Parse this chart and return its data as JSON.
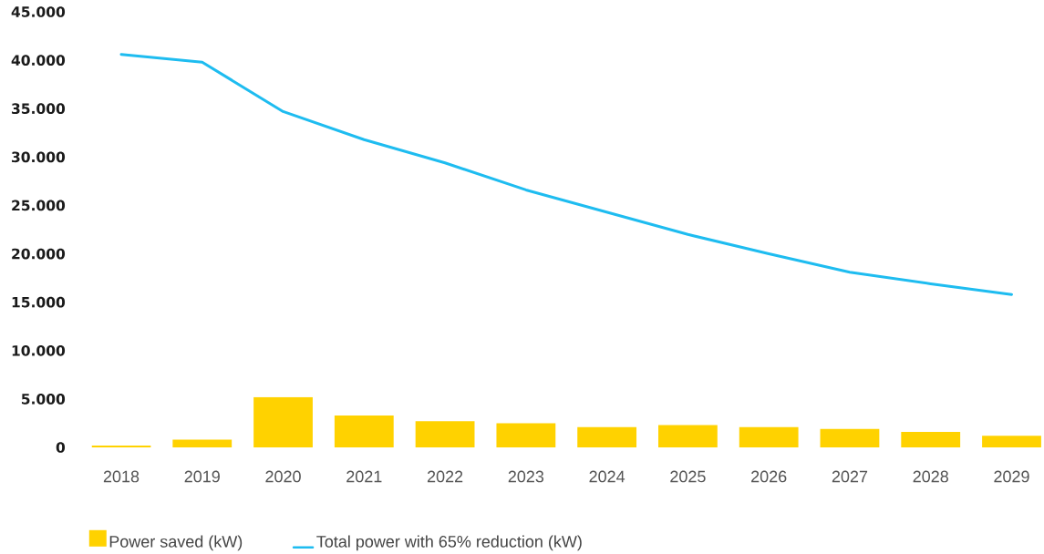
{
  "chart_data": {
    "type": "bar",
    "categories": [
      "2018",
      "2019",
      "2020",
      "2021",
      "2022",
      "2023",
      "2024",
      "2025",
      "2026",
      "2027",
      "2028",
      "2029"
    ],
    "series": [
      {
        "name": "Power saved (kW)",
        "color": "#ffd200",
        "values": [
          200,
          800,
          5200,
          3300,
          2700,
          2500,
          2100,
          2300,
          2100,
          1900,
          1600,
          1200
        ]
      },
      {
        "name": "Total power with 65% reduction (kW)",
        "type": "line",
        "color": "#1ebcf0",
        "values": [
          40600,
          39800,
          34700,
          31800,
          29400,
          26600,
          24300,
          22000,
          20000,
          18100,
          16900,
          15800
        ]
      }
    ],
    "ylim": [
      0,
      45000
    ],
    "yticks": [
      0,
      {
        "value": 5000,
        "label": "5.000"
      },
      {
        "value": 10000,
        "label": "10.000"
      },
      {
        "value": 15000,
        "label": "15.000"
      },
      {
        "value": 20000,
        "label": "20.000"
      },
      {
        "value": 25000,
        "label": "25.000"
      },
      {
        "value": 30000,
        "label": "30.000"
      },
      {
        "value": 35000,
        "label": "35.000"
      },
      {
        "value": 40000,
        "label": "40.000"
      },
      {
        "value": 45000,
        "label": "45.000"
      }
    ],
    "legend": "bottom"
  }
}
